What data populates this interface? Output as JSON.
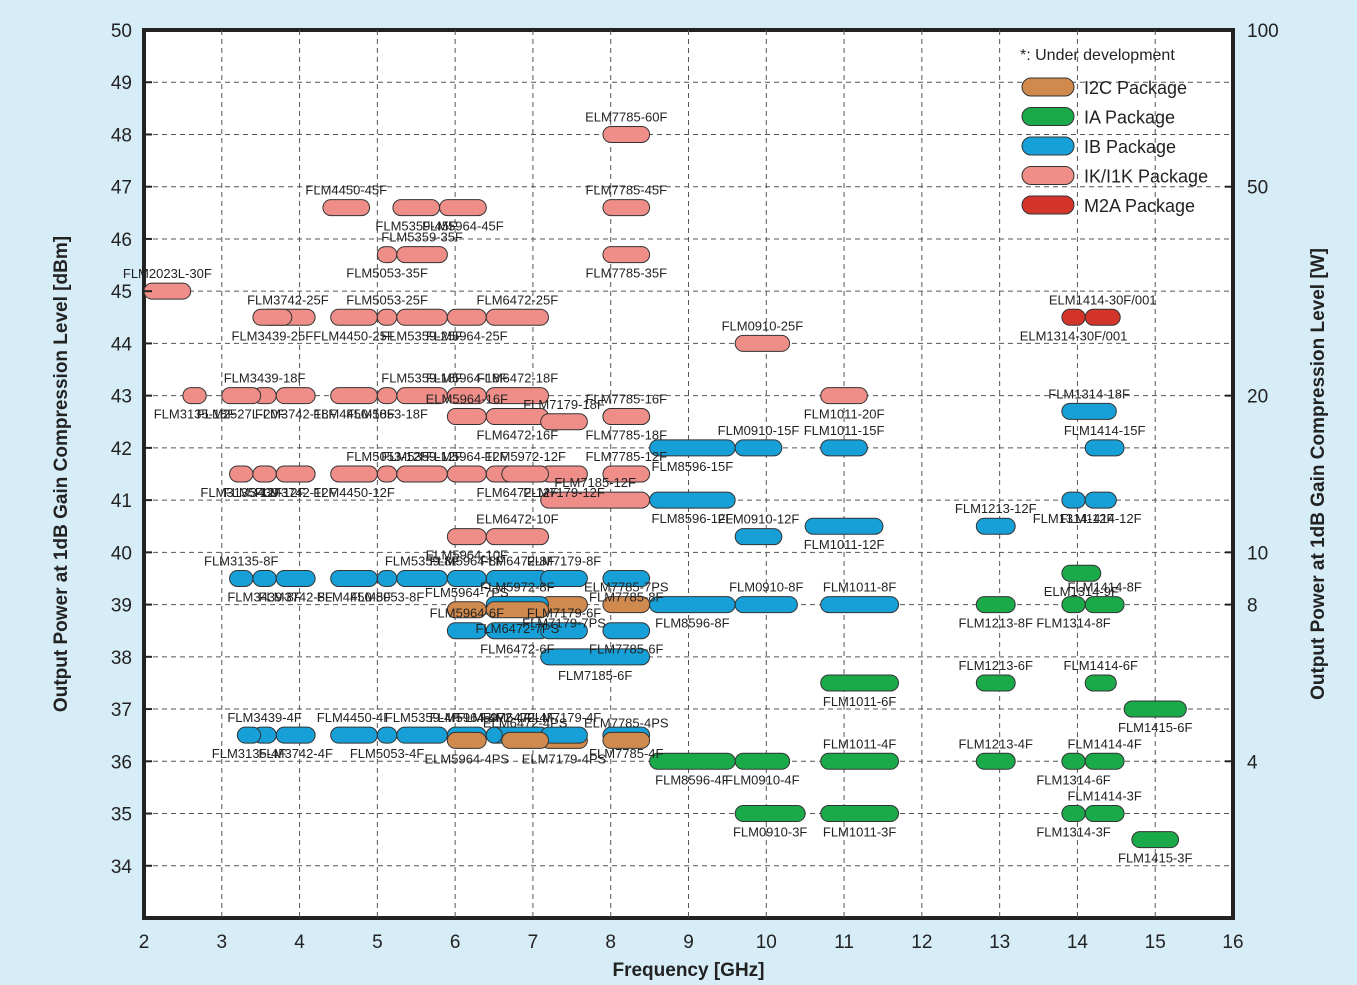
{
  "chart_data": {
    "type": "range",
    "xlabel": "Frequency [GHz]",
    "ylabel": "Output Power at 1dB Gain Compression Level [dBm]",
    "y2label": "Output Power at 1dB Gain Compression Level [W]",
    "xlim": [
      2,
      16
    ],
    "ylim": [
      33,
      50
    ],
    "xticks": [
      "2",
      "3",
      "4",
      "5",
      "6",
      "7",
      "8",
      "9",
      "10",
      "11",
      "12",
      "13",
      "14",
      "15",
      "16"
    ],
    "yticks": [
      "34",
      "35",
      "36",
      "37",
      "38",
      "39",
      "40",
      "41",
      "42",
      "43",
      "44",
      "45",
      "46",
      "47",
      "48",
      "49",
      "50"
    ],
    "y2ticks": [
      {
        "label": "100",
        "dbm": 50
      },
      {
        "label": "50",
        "dbm": 47
      },
      {
        "label": "20",
        "dbm": 43
      },
      {
        "label": "10",
        "dbm": 40
      },
      {
        "label": "8",
        "dbm": 39
      },
      {
        "label": "4",
        "dbm": 36
      }
    ],
    "grid": true,
    "legend_position": "top-right",
    "legend_note": "*: Under development",
    "packages": [
      {
        "key": "I2C",
        "name": "I2C Package",
        "color": "#d08a4e"
      },
      {
        "key": "IA",
        "name": "IA Package",
        "color": "#1aaa4a"
      },
      {
        "key": "IB",
        "name": "IB Package",
        "color": "#17a0d8"
      },
      {
        "key": "IK",
        "name": "IK/I1K Package",
        "color": "#ef8e88"
      },
      {
        "key": "M2A",
        "name": "M2A Package",
        "color": "#d4352a"
      }
    ],
    "devices": [
      {
        "name": "ELM7785-60F",
        "pkg": "IK",
        "f": [
          7.9,
          8.5
        ],
        "p": 48
      },
      {
        "name": "FLM5359-45F",
        "pkg": "IK",
        "f": [
          5.2,
          5.8
        ],
        "p": 46.6
      },
      {
        "name": "FLM4450-45F",
        "pkg": "IK",
        "f": [
          4.3,
          4.9
        ],
        "p": 46.6
      },
      {
        "name": "FLM5964-45F",
        "pkg": "IK",
        "f": [
          5.8,
          6.4
        ],
        "p": 46.6
      },
      {
        "name": "FLM7785-45F",
        "pkg": "IK",
        "f": [
          7.9,
          8.5
        ],
        "p": 46.6
      },
      {
        "name": "FLM5053-35F",
        "pkg": "IK",
        "f": [
          5.0,
          5.25
        ],
        "p": 45.7
      },
      {
        "name": "FLM5359-35F",
        "pkg": "IK",
        "f": [
          5.25,
          5.9
        ],
        "p": 45.7
      },
      {
        "name": "FLM7785-35F",
        "pkg": "IK",
        "f": [
          7.9,
          8.5
        ],
        "p": 45.7
      },
      {
        "name": "FLM2023L-30F",
        "pkg": "IK",
        "f": [
          2.0,
          2.6
        ],
        "p": 45
      },
      {
        "name": "FLM4450-25F",
        "pkg": "IK",
        "f": [
          4.4,
          5.0
        ],
        "p": 44.5
      },
      {
        "name": "FLM5053-25F",
        "pkg": "IK",
        "f": [
          5.0,
          5.25
        ],
        "p": 44.5
      },
      {
        "name": "FLM5359-25F",
        "pkg": "IK",
        "f": [
          5.25,
          5.9
        ],
        "p": 44.5
      },
      {
        "name": "FLM3742-25F",
        "pkg": "IK",
        "f": [
          3.5,
          4.2
        ],
        "p": 44.5
      },
      {
        "name": "FLM3439-25F",
        "pkg": "IK",
        "f": [
          3.4,
          3.9
        ],
        "p": 44.5
      },
      {
        "name": "FLM6472-25F",
        "pkg": "IK",
        "f": [
          6.4,
          7.2
        ],
        "p": 44.5
      },
      {
        "name": "FLM5964-25F",
        "pkg": "IK",
        "f": [
          5.9,
          6.4
        ],
        "p": 44.5
      },
      {
        "name": "FLM0910-25F",
        "pkg": "IK",
        "f": [
          9.6,
          10.3
        ],
        "p": 44
      },
      {
        "name": "ELM1314-30F/001",
        "pkg": "M2A",
        "f": [
          13.8,
          14.1
        ],
        "p": 44.5
      },
      {
        "name": "ELM1414-30F/001",
        "pkg": "M2A",
        "f": [
          14.1,
          14.55
        ],
        "p": 44.5
      },
      {
        "name": "FLM4450-18F",
        "pkg": "IK",
        "f": [
          4.4,
          5.0
        ],
        "p": 43
      },
      {
        "name": "FLM3439-18F",
        "pkg": "IK",
        "f": [
          3.4,
          3.7
        ],
        "p": 43
      },
      {
        "name": "FLM5053-18F",
        "pkg": "IK",
        "f": [
          5.0,
          5.25
        ],
        "p": 43
      },
      {
        "name": "FLM6472-18F",
        "pkg": "IK",
        "f": [
          6.4,
          7.2
        ],
        "p": 43
      },
      {
        "name": "FLM3135-18F",
        "pkg": "IK",
        "f": [
          2.5,
          2.8
        ],
        "p": 43
      },
      {
        "name": "FLM5359-18F",
        "pkg": "IK",
        "f": [
          5.25,
          5.9
        ],
        "p": 43
      },
      {
        "name": "FLM6472-16F",
        "pkg": "IK",
        "f": [
          6.4,
          7.2
        ],
        "p": 42.6
      },
      {
        "name": "FLM7785-16F",
        "pkg": "IK",
        "f": [
          7.9,
          8.5
        ],
        "p": 42.6
      },
      {
        "name": "FLM1011-20F",
        "pkg": "IK",
        "f": [
          10.7,
          11.3
        ],
        "p": 43
      },
      {
        "name": "FLM7179-18F",
        "pkg": "IK",
        "f": [
          7.1,
          7.7
        ],
        "p": 42.5
      },
      {
        "name": "FLM3742-18F",
        "pkg": "IK",
        "f": [
          3.7,
          4.2
        ],
        "p": 43
      },
      {
        "name": "FLM5964-18F",
        "pkg": "IK",
        "f": [
          5.9,
          6.4
        ],
        "p": 43
      },
      {
        "name": "FLM7785-18F",
        "pkg": "IK",
        "f": [
          7.9,
          8.5
        ],
        "p": 42.6
      },
      {
        "name": "FLM1314-18F",
        "pkg": "IB",
        "f": [
          13.8,
          14.5
        ],
        "p": 42.7
      },
      {
        "name": "FLM4450-12F",
        "pkg": "IK",
        "f": [
          4.4,
          5.0
        ],
        "p": 41.5
      },
      {
        "name": "ELM5964-16F",
        "pkg": "IK",
        "f": [
          5.9,
          6.4
        ],
        "p": 42.6
      },
      {
        "name": "FLM8596-15F",
        "pkg": "IB",
        "f": [
          8.5,
          9.6
        ],
        "p": 42
      },
      {
        "name": "FLM1011-15F",
        "pkg": "IB",
        "f": [
          10.7,
          11.3
        ],
        "p": 42
      },
      {
        "name": "FLM2527L-20F",
        "pkg": "IK",
        "f": [
          3.0,
          3.5
        ],
        "p": 43
      },
      {
        "name": "FLM5053-12F",
        "pkg": "IK",
        "f": [
          5.0,
          5.25
        ],
        "p": 41.5
      },
      {
        "name": "FLM6472-12F",
        "pkg": "IK",
        "f": [
          6.4,
          7.2
        ],
        "p": 41.5
      },
      {
        "name": "FLM1414-15F",
        "pkg": "IB",
        "f": [
          14.1,
          14.6
        ],
        "p": 42
      },
      {
        "name": "FLM3742-12F",
        "pkg": "IK",
        "f": [
          3.7,
          4.2
        ],
        "p": 41.5
      },
      {
        "name": "FLM5359-12F",
        "pkg": "IK",
        "f": [
          5.25,
          5.9
        ],
        "p": 41.5
      },
      {
        "name": "FLM7179-12F",
        "pkg": "IK",
        "f": [
          7.1,
          7.7
        ],
        "p": 41.5
      },
      {
        "name": "FLM0910-15F",
        "pkg": "IB",
        "f": [
          9.6,
          10.2
        ],
        "p": 42
      },
      {
        "name": "FLM1314-12F",
        "pkg": "IB",
        "f": [
          13.8,
          14.1
        ],
        "p": 41
      },
      {
        "name": "FLM7785-12F",
        "pkg": "IK",
        "f": [
          7.9,
          8.5
        ],
        "p": 41.5
      },
      {
        "name": "FLM1414-12F",
        "pkg": "IB",
        "f": [
          14.1,
          14.5
        ],
        "p": 41
      },
      {
        "name": "FLM5964-12F",
        "pkg": "IK",
        "f": [
          5.9,
          6.4
        ],
        "p": 41.5
      },
      {
        "name": "FLM3439-12F",
        "pkg": "IK",
        "f": [
          3.4,
          3.7
        ],
        "p": 41.5
      },
      {
        "name": "FLM5972-12F",
        "pkg": "IK",
        "f": [
          6.6,
          7.2
        ],
        "p": 41.5
      },
      {
        "name": "FLM3135-12F",
        "pkg": "IK",
        "f": [
          3.1,
          3.4
        ],
        "p": 41.5
      },
      {
        "name": "FLM7185-12F",
        "pkg": "IK",
        "f": [
          7.1,
          8.5
        ],
        "p": 41
      },
      {
        "name": "FLM8596-12F",
        "pkg": "IB",
        "f": [
          8.5,
          9.6
        ],
        "p": 41
      },
      {
        "name": "FLM1213-12F",
        "pkg": "IB",
        "f": [
          12.7,
          13.2
        ],
        "p": 40.5
      },
      {
        "name": "ELM5964-10F",
        "pkg": "IK",
        "f": [
          5.9,
          6.4
        ],
        "p": 40.3
      },
      {
        "name": "ELM6472-10F",
        "pkg": "IK",
        "f": [
          6.4,
          7.2
        ],
        "p": 40.3
      },
      {
        "name": "FLM4450-8F",
        "pkg": "IB",
        "f": [
          4.4,
          5.0
        ],
        "p": 39.5
      },
      {
        "name": "FLM6472-8F",
        "pkg": "IB",
        "f": [
          6.4,
          7.2
        ],
        "p": 39.5
      },
      {
        "name": "FLM5053-8F",
        "pkg": "IB",
        "f": [
          5.0,
          5.25
        ],
        "p": 39.5
      },
      {
        "name": "FLM7179-8F",
        "pkg": "IB",
        "f": [
          7.1,
          7.7
        ],
        "p": 39.5
      },
      {
        "name": "FLM1011-12F",
        "pkg": "IB",
        "f": [
          10.5,
          11.5
        ],
        "p": 40.5
      },
      {
        "name": "FLM0910-12F",
        "pkg": "IB",
        "f": [
          9.6,
          10.2
        ],
        "p": 40.3
      },
      {
        "name": "FLM3742-8F",
        "pkg": "IB",
        "f": [
          3.7,
          4.2
        ],
        "p": 39.5
      },
      {
        "name": "FLM5359-8F",
        "pkg": "IB",
        "f": [
          5.25,
          5.9
        ],
        "p": 39.5
      },
      {
        "name": "FLM7785-8F",
        "pkg": "IB",
        "f": [
          7.9,
          8.5
        ],
        "p": 39.5
      },
      {
        "name": "FLM5964-8F",
        "pkg": "IB",
        "f": [
          5.9,
          6.4
        ],
        "p": 39.5
      },
      {
        "name": "ELM1314-9F",
        "pkg": "IA",
        "f": [
          13.8,
          14.3
        ],
        "p": 39.6
      },
      {
        "name": "FLM3135-8F",
        "pkg": "IB",
        "f": [
          3.1,
          3.4
        ],
        "p": 39.5
      },
      {
        "name": "FLM7179-7PS",
        "pkg": "I2C",
        "f": [
          7.1,
          7.7
        ],
        "p": 39
      },
      {
        "name": "FLM0910-8F",
        "pkg": "IB",
        "f": [
          9.6,
          10.4
        ],
        "p": 39
      },
      {
        "name": "FLM1213-8F",
        "pkg": "IA",
        "f": [
          12.7,
          13.2
        ],
        "p": 39
      },
      {
        "name": "FLM1414-8F",
        "pkg": "IA",
        "f": [
          14.1,
          14.6
        ],
        "p": 39
      },
      {
        "name": "FLM3439-8F",
        "pkg": "IB",
        "f": [
          3.4,
          3.7
        ],
        "p": 39.5
      },
      {
        "name": "FLM5972-8F",
        "pkg": "IB",
        "f": [
          6.4,
          7.2
        ],
        "p": 39
      },
      {
        "name": "FLM8596-8F",
        "pkg": "IB",
        "f": [
          8.5,
          9.6
        ],
        "p": 39
      },
      {
        "name": "FLM1011-8F",
        "pkg": "IB",
        "f": [
          10.7,
          11.7
        ],
        "p": 39
      },
      {
        "name": "FLM1314-8F",
        "pkg": "IA",
        "f": [
          13.8,
          14.1
        ],
        "p": 39
      },
      {
        "name": "FLM5964-7PS",
        "pkg": "I2C",
        "f": [
          5.9,
          6.4
        ],
        "p": 38.9
      },
      {
        "name": "FLM6472-7PS",
        "pkg": "I2C",
        "f": [
          6.4,
          7.2
        ],
        "p": 38.9
      },
      {
        "name": "ELM7785-7PS",
        "pkg": "I2C",
        "f": [
          7.9,
          8.5
        ],
        "p": 39
      },
      {
        "name": "FLM6472-6F",
        "pkg": "IB",
        "f": [
          6.4,
          7.2
        ],
        "p": 38.5
      },
      {
        "name": "FLM5964-6F",
        "pkg": "IB",
        "f": [
          5.9,
          6.4
        ],
        "p": 38.5
      },
      {
        "name": "FLM7785-6F",
        "pkg": "IB",
        "f": [
          7.9,
          8.5
        ],
        "p": 38.5
      },
      {
        "name": "FLM7179-6F",
        "pkg": "IB",
        "f": [
          7.1,
          7.7
        ],
        "p": 38.5
      },
      {
        "name": "FLM7185-6F",
        "pkg": "IB",
        "f": [
          7.1,
          8.5
        ],
        "p": 38
      },
      {
        "name": "FLM1414-6F",
        "pkg": "IA",
        "f": [
          14.1,
          14.5
        ],
        "p": 37.5
      },
      {
        "name": "FLM1011-6F",
        "pkg": "IA",
        "f": [
          10.7,
          11.7
        ],
        "p": 37.5
      },
      {
        "name": "FLM1213-6F",
        "pkg": "IA",
        "f": [
          12.7,
          13.2
        ],
        "p": 37.5
      },
      {
        "name": "FLM1415-6F",
        "pkg": "IA",
        "f": [
          14.6,
          15.4
        ],
        "p": 37
      },
      {
        "name": "FLM4450-4F",
        "pkg": "IB",
        "f": [
          4.4,
          5.0
        ],
        "p": 36.5
      },
      {
        "name": "FLM5053-4F",
        "pkg": "IB",
        "f": [
          5.0,
          5.25
        ],
        "p": 36.5
      },
      {
        "name": "FLM6472-4F",
        "pkg": "IB",
        "f": [
          6.4,
          7.2
        ],
        "p": 36.5
      },
      {
        "name": "FLM3742-4F",
        "pkg": "IB",
        "f": [
          3.7,
          4.2
        ],
        "p": 36.5
      },
      {
        "name": "FLM5359-4F",
        "pkg": "IB",
        "f": [
          5.25,
          5.9
        ],
        "p": 36.5
      },
      {
        "name": "FLM7785-4F",
        "pkg": "IB",
        "f": [
          7.9,
          8.5
        ],
        "p": 36.5
      },
      {
        "name": "ELM7785-4PS",
        "pkg": "I2C",
        "f": [
          7.9,
          8.5
        ],
        "p": 36.4
      },
      {
        "name": "FLM0910-4F",
        "pkg": "IA",
        "f": [
          9.6,
          10.3
        ],
        "p": 36
      },
      {
        "name": "FLM1213-4F",
        "pkg": "IA",
        "f": [
          12.7,
          13.2
        ],
        "p": 36
      },
      {
        "name": "FLM1314-6F",
        "pkg": "IA",
        "f": [
          13.8,
          14.1
        ],
        "p": 36
      },
      {
        "name": "FLM3439-4F",
        "pkg": "IB",
        "f": [
          3.4,
          3.7
        ],
        "p": 36.5
      },
      {
        "name": "FLM8596-4F",
        "pkg": "IA",
        "f": [
          8.5,
          9.6
        ],
        "p": 36
      },
      {
        "name": "FLM1011-4F",
        "pkg": "IA",
        "f": [
          10.7,
          11.7
        ],
        "p": 36
      },
      {
        "name": "ELM7179-4PS",
        "pkg": "I2C",
        "f": [
          7.1,
          7.7
        ],
        "p": 36.4
      },
      {
        "name": "FLM1414-4F",
        "pkg": "IA",
        "f": [
          14.1,
          14.6
        ],
        "p": 36
      },
      {
        "name": "FLM3135-4F",
        "pkg": "IB",
        "f": [
          3.2,
          3.5
        ],
        "p": 36.5
      },
      {
        "name": "FLM7179-4F",
        "pkg": "IB",
        "f": [
          7.1,
          7.7
        ],
        "p": 36.5
      },
      {
        "name": "FLM0910-3F",
        "pkg": "IA",
        "f": [
          9.6,
          10.5
        ],
        "p": 35
      },
      {
        "name": "FLM5964-4F",
        "pkg": "IB",
        "f": [
          5.9,
          6.4
        ],
        "p": 36.5
      },
      {
        "name": "FLM1314-3F",
        "pkg": "IA",
        "f": [
          13.8,
          14.1
        ],
        "p": 35
      },
      {
        "name": "FLM1414-3F",
        "pkg": "IA",
        "f": [
          14.1,
          14.6
        ],
        "p": 35
      },
      {
        "name": "ELM5964-4PS",
        "pkg": "I2C",
        "f": [
          5.9,
          6.4
        ],
        "p": 36.4
      },
      {
        "name": "ELM6472-4PS",
        "pkg": "I2C",
        "f": [
          6.6,
          7.2
        ],
        "p": 36.4
      },
      {
        "name": "FLM1011-3F",
        "pkg": "IA",
        "f": [
          10.7,
          11.7
        ],
        "p": 35
      },
      {
        "name": "FLM5972-4F",
        "pkg": "IB",
        "f": [
          6.4,
          6.6
        ],
        "p": 36.5
      },
      {
        "name": "FLM1415-3F",
        "pkg": "IA",
        "f": [
          14.7,
          15.3
        ],
        "p": 34.5
      }
    ]
  }
}
